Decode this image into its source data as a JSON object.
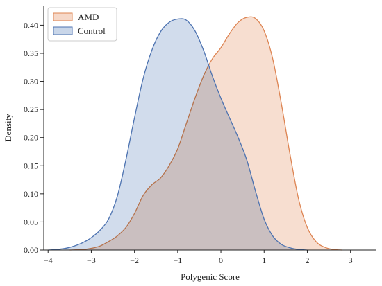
{
  "chart_data": {
    "type": "area",
    "title": "",
    "xlabel": "Polygenic Score",
    "ylabel": "Density",
    "xlim": [
      -4.1,
      3.6
    ],
    "ylim": [
      0,
      0.435
    ],
    "xticks": [
      -4,
      -3,
      -2,
      -1,
      0,
      1,
      2,
      3
    ],
    "xtick_labels": [
      "−4",
      "−3",
      "−2",
      "−1",
      "0",
      "1",
      "2",
      "3"
    ],
    "yticks": [
      0,
      0.05,
      0.1,
      0.15,
      0.2,
      0.25,
      0.3,
      0.35,
      0.4
    ],
    "ytick_labels": [
      "0.00",
      "0.05",
      "0.10",
      "0.15",
      "0.20",
      "0.25",
      "0.30",
      "0.35",
      "0.40"
    ],
    "grid": false,
    "legend": "top-left",
    "series": [
      {
        "name": "AMD",
        "color": "#dd8452",
        "fill": "#f6d8c8",
        "x": [
          -3.5,
          -3.2,
          -3.0,
          -2.8,
          -2.6,
          -2.4,
          -2.2,
          -2.0,
          -1.8,
          -1.6,
          -1.4,
          -1.2,
          -1.0,
          -0.8,
          -0.6,
          -0.4,
          -0.2,
          0.0,
          0.2,
          0.4,
          0.6,
          0.8,
          1.0,
          1.2,
          1.4,
          1.6,
          1.8,
          2.0,
          2.2,
          2.4,
          2.6,
          2.8
        ],
        "y": [
          0.0,
          0.001,
          0.003,
          0.007,
          0.015,
          0.025,
          0.04,
          0.065,
          0.097,
          0.116,
          0.128,
          0.15,
          0.18,
          0.225,
          0.27,
          0.31,
          0.34,
          0.36,
          0.385,
          0.405,
          0.414,
          0.412,
          0.39,
          0.34,
          0.26,
          0.17,
          0.09,
          0.04,
          0.015,
          0.005,
          0.001,
          0.0
        ]
      },
      {
        "name": "Control",
        "color": "#4c72b0",
        "fill": "#c9d6e9",
        "x": [
          -4.0,
          -3.8,
          -3.6,
          -3.4,
          -3.2,
          -3.0,
          -2.8,
          -2.6,
          -2.4,
          -2.2,
          -2.0,
          -1.8,
          -1.6,
          -1.4,
          -1.2,
          -1.0,
          -0.8,
          -0.6,
          -0.4,
          -0.2,
          0.0,
          0.2,
          0.4,
          0.6,
          0.8,
          1.0,
          1.2,
          1.4,
          1.6,
          1.8,
          2.0
        ],
        "y": [
          0.0,
          0.001,
          0.003,
          0.007,
          0.013,
          0.022,
          0.035,
          0.055,
          0.095,
          0.16,
          0.235,
          0.305,
          0.355,
          0.388,
          0.405,
          0.411,
          0.409,
          0.39,
          0.355,
          0.31,
          0.27,
          0.235,
          0.2,
          0.16,
          0.105,
          0.055,
          0.025,
          0.01,
          0.004,
          0.001,
          0.0
        ]
      }
    ]
  }
}
